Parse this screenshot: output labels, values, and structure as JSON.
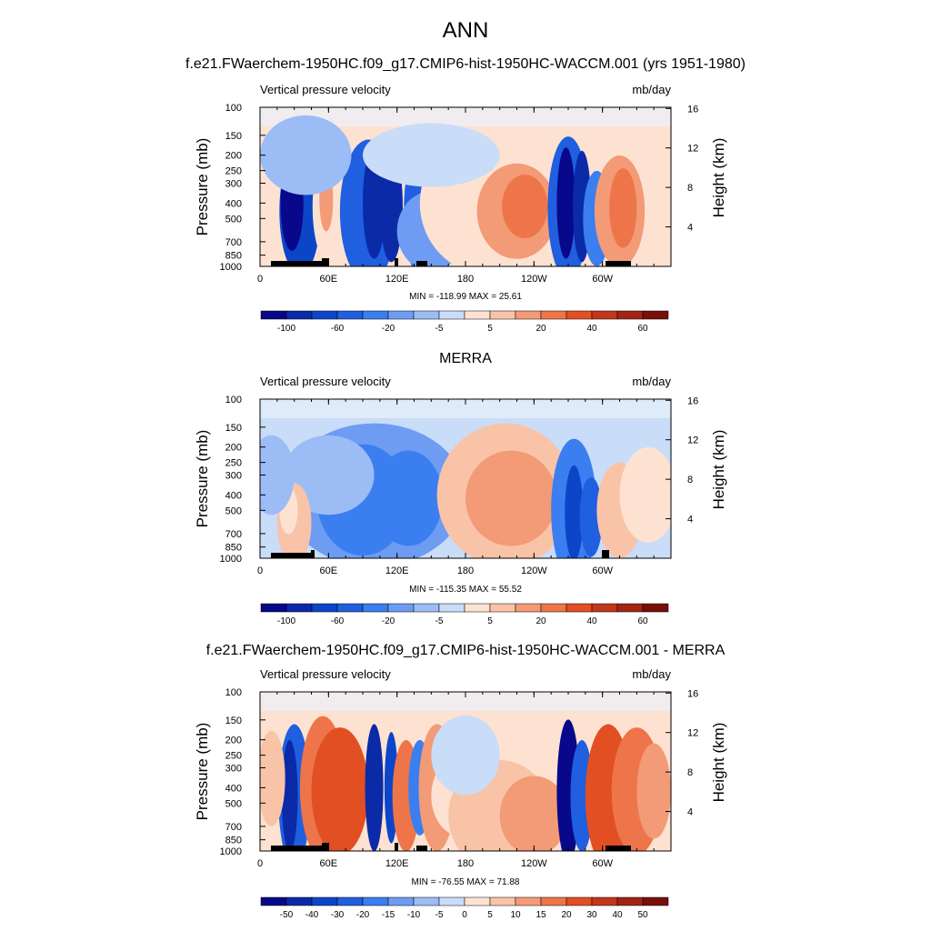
{
  "figure": {
    "title": "ANN"
  },
  "chart_data": [
    {
      "type": "heatmap",
      "panel_title": "f.e21.FWaerchem-1950HC.f09_g17.CMIP6-hist-1950HC-WACCM.001 (yrs 1951-1980)",
      "variable": "Vertical pressure velocity",
      "units": "mb/day",
      "ylabel": "Pressure (mb)",
      "ylabel_right": "Height (km)",
      "x_ticks": [
        "0",
        "60E",
        "120E",
        "180",
        "120W",
        "60W"
      ],
      "y_ticks": [
        "100",
        "150",
        "200",
        "250",
        "300",
        "400",
        "500",
        "700",
        "850",
        "1000"
      ],
      "y_ticks_right": [
        "16",
        "12",
        "8",
        "4"
      ],
      "min": -118.99,
      "max": 25.61,
      "minmax_text": "MIN = -118.99  MAX =  25.61",
      "colorbar_labels": [
        "-100",
        "-60",
        "-20",
        "-5",
        "5",
        "20",
        "40",
        "60"
      ]
    },
    {
      "type": "heatmap",
      "panel_title": "MERRA",
      "variable": "Vertical pressure velocity",
      "units": "mb/day",
      "ylabel": "Pressure (mb)",
      "ylabel_right": "Height (km)",
      "x_ticks": [
        "0",
        "60E",
        "120E",
        "180",
        "120W",
        "60W"
      ],
      "y_ticks": [
        "100",
        "150",
        "200",
        "250",
        "300",
        "400",
        "500",
        "700",
        "850",
        "1000"
      ],
      "y_ticks_right": [
        "16",
        "12",
        "8",
        "4"
      ],
      "min": -115.35,
      "max": 55.52,
      "minmax_text": "MIN = -115.35  MAX =  55.52",
      "colorbar_labels": [
        "-100",
        "-60",
        "-20",
        "-5",
        "5",
        "20",
        "40",
        "60"
      ]
    },
    {
      "type": "heatmap",
      "panel_title": "f.e21.FWaerchem-1950HC.f09_g17.CMIP6-hist-1950HC-WACCM.001 - MERRA",
      "variable": "Vertical pressure velocity",
      "units": "mb/day",
      "ylabel": "Pressure (mb)",
      "ylabel_right": "Height (km)",
      "x_ticks": [
        "0",
        "60E",
        "120E",
        "180",
        "120W",
        "60W"
      ],
      "y_ticks": [
        "100",
        "150",
        "200",
        "250",
        "300",
        "400",
        "500",
        "700",
        "850",
        "1000"
      ],
      "y_ticks_right": [
        "16",
        "12",
        "8",
        "4"
      ],
      "min": -76.55,
      "max": 71.88,
      "minmax_text": "MIN = -76.55  MAX =  71.88",
      "colorbar_labels": [
        "-50",
        "-40",
        "-30",
        "-20",
        "-15",
        "-10",
        "-5",
        "0",
        "5",
        "10",
        "15",
        "20",
        "30",
        "40",
        "50"
      ]
    }
  ],
  "colors": {
    "colormap": [
      "#08088a",
      "#0a2aa8",
      "#0d45c9",
      "#1f5fe0",
      "#3b7ef0",
      "#6d9cf2",
      "#9cbcf5",
      "#c9dcf8",
      "#fde2d2",
      "#f9c3a7",
      "#f39a76",
      "#ee7549",
      "#e24f22",
      "#c3361a",
      "#a12414",
      "#780f0a"
    ]
  }
}
